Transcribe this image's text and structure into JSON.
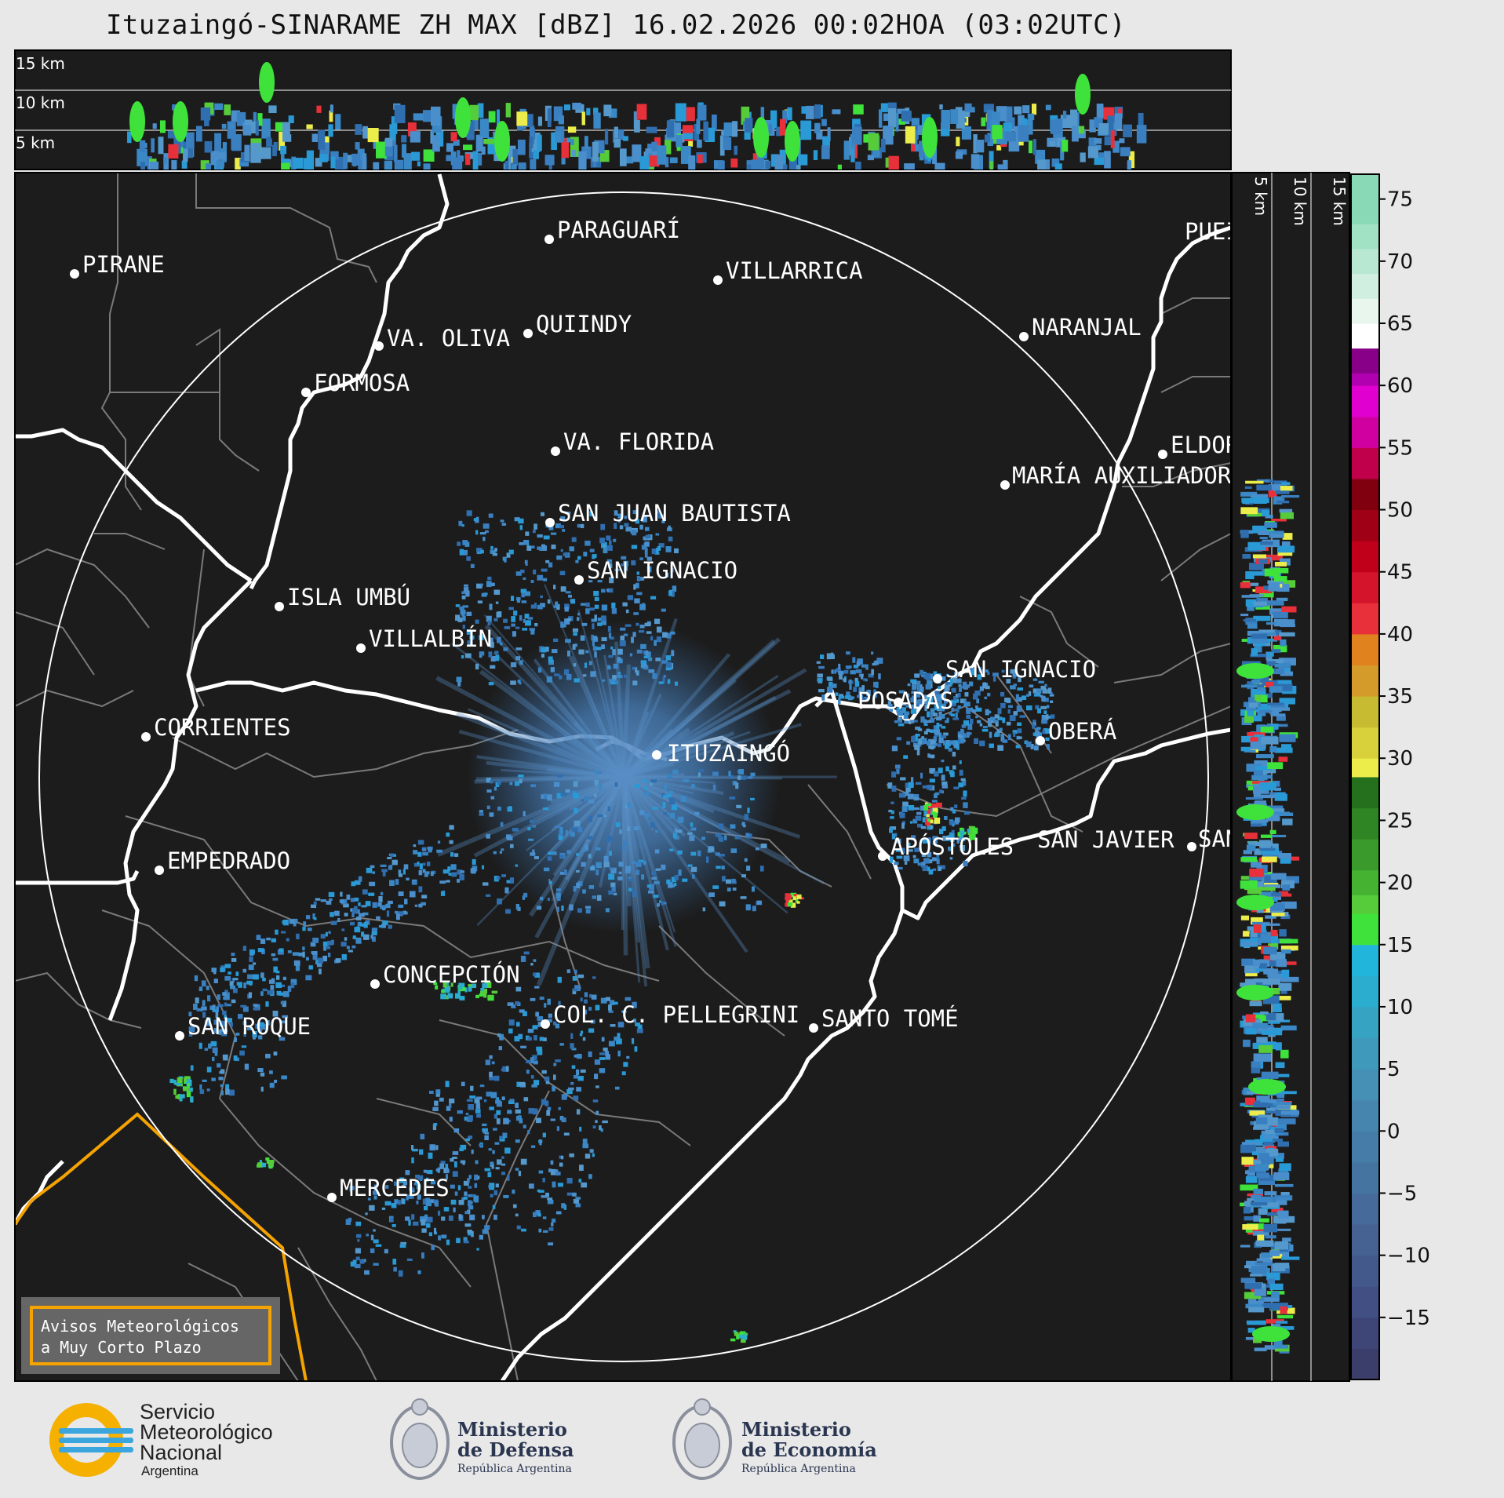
{
  "title": "Ituzaingó-SINARAME ZH MAX [dBZ] 16.02.2026 00:02HOA (03:02UTC)",
  "top_panel": {
    "levels": [
      "15 km",
      "10 km",
      "5 km"
    ]
  },
  "right_panel": {
    "levels": [
      "5 km",
      "10 km",
      "15 km"
    ]
  },
  "colorbar": {
    "ticks": [
      "75",
      "70",
      "65",
      "60",
      "55",
      "50",
      "45",
      "40",
      "35",
      "30",
      "25",
      "20",
      "15",
      "10",
      "5",
      "0",
      "−5",
      "−10",
      "−15"
    ],
    "range": [
      -20,
      77
    ]
  },
  "places": [
    {
      "name": "PARAGUARÍ"
    },
    {
      "name": "VILLARRICA"
    },
    {
      "name": "PIRANE"
    },
    {
      "name": "QUIINDY"
    },
    {
      "name": "VA. OLIVA"
    },
    {
      "name": "NARANJAL"
    },
    {
      "name": "FORMOSA"
    },
    {
      "name": "VA. FLORIDA"
    },
    {
      "name": "ELDOR"
    },
    {
      "name": "MARÍA AUXILIADOR"
    },
    {
      "name": "SAN JUAN BAUTISTA"
    },
    {
      "name": "SAN IGNACIO"
    },
    {
      "name": "ISLA UMBÚ"
    },
    {
      "name": "VILLALBÍN"
    },
    {
      "name": "SAN IGNACIO"
    },
    {
      "name": "POSADAS"
    },
    {
      "name": "OBERÁ"
    },
    {
      "name": "CORRIENTES"
    },
    {
      "name": "ITUZAINGÓ"
    },
    {
      "name": "APÓSTOLES"
    },
    {
      "name": "SAN JAVIER"
    },
    {
      "name": "SAN"
    },
    {
      "name": "EMPEDRADO"
    },
    {
      "name": "CONCEPCIÓN"
    },
    {
      "name": "COL. C. PELLEGRINI"
    },
    {
      "name": "SANTO TOMÉ"
    },
    {
      "name": "SAN ROQUE"
    },
    {
      "name": "MERCEDES"
    },
    {
      "name": "PUEI"
    }
  ],
  "warning_box": {
    "line1": "Avisos Meteorológicos",
    "line2": "a Muy Corto Plazo"
  },
  "logos": {
    "smn": {
      "line1": "Servicio",
      "line2": "Meteorológico",
      "line3": "Nacional",
      "line4": "Argentina"
    },
    "defensa": {
      "line1": "Ministerio",
      "line2": "de Defensa",
      "line3": "República Argentina"
    },
    "economia": {
      "line1": "Ministerio",
      "line2": "de Economía",
      "line3": "República Argentina"
    }
  },
  "colors": {
    "map_bg": "#1c1c1c",
    "border_white": "#ffffff",
    "border_gray": "#808080",
    "warning_orange": "#f5a300",
    "echo_blue": "#3f7fb8"
  }
}
